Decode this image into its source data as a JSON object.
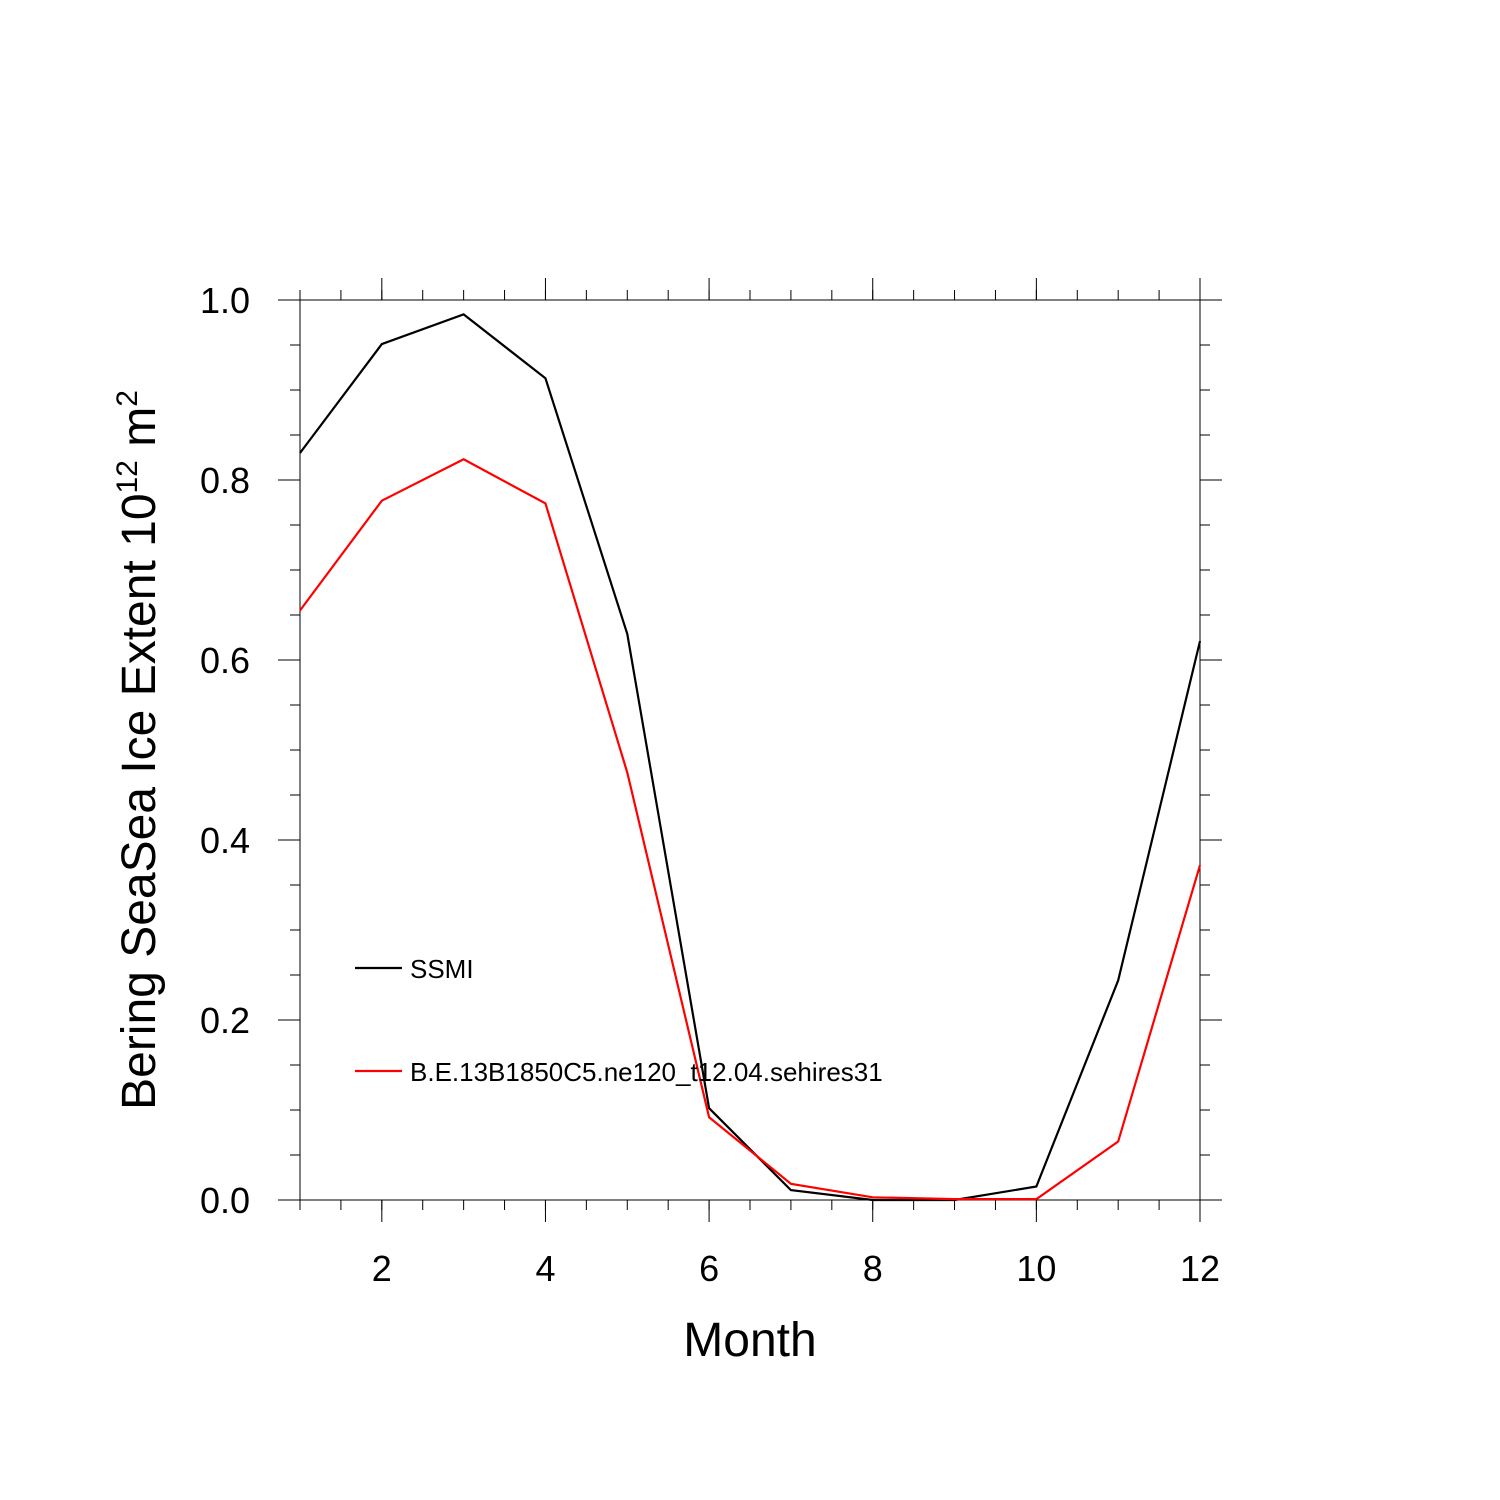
{
  "chart_data": {
    "type": "line",
    "title": "",
    "xlabel": "Month",
    "ylabel": "Bering SeaSea Ice Extent 10",
    "ylabel_superscript": "12",
    "ylabel_unit": " m",
    "ylabel_unit_superscript": "2",
    "xlim": [
      1,
      12
    ],
    "ylim": [
      0.0,
      1.0
    ],
    "x_ticks": [
      2,
      4,
      6,
      8,
      10,
      12
    ],
    "x_tick_labels": [
      "2",
      "4",
      "6",
      "8",
      "10",
      "12"
    ],
    "y_ticks": [
      0.0,
      0.2,
      0.4,
      0.6,
      0.8,
      1.0
    ],
    "y_tick_labels": [
      "0.0",
      "0.2",
      "0.4",
      "0.6",
      "0.8",
      "1.0"
    ],
    "grid": false,
    "legend_position": "lower-left",
    "x": [
      1,
      2,
      3,
      4,
      5,
      6,
      7,
      8,
      9,
      10,
      11,
      12
    ],
    "series": [
      {
        "name": "SSMI",
        "color": "#000000",
        "values": [
          0.83,
          0.951,
          0.984,
          0.913,
          0.629,
          0.102,
          0.011,
          0.0,
          0.0,
          0.015,
          0.244,
          0.621
        ]
      },
      {
        "name": "B.E.13B1850C5.ne120_t12.04.sehires31",
        "color": "#ff0000",
        "values": [
          0.655,
          0.777,
          0.823,
          0.774,
          0.475,
          0.092,
          0.018,
          0.003,
          0.001,
          0.001,
          0.065,
          0.372
        ]
      }
    ]
  }
}
